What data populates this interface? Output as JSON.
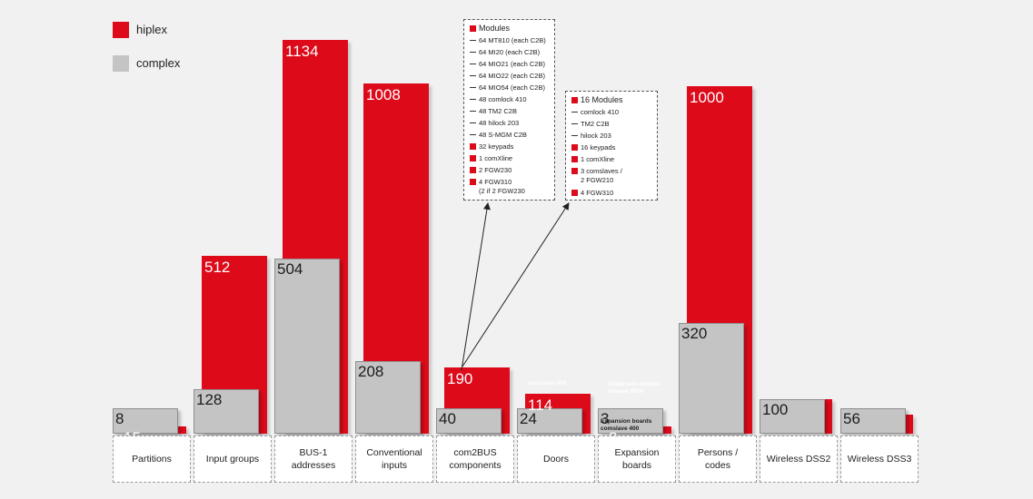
{
  "legend": {
    "hiplex": {
      "label": "hiplex",
      "color": "#dd0a1a"
    },
    "complex": {
      "label": "complex",
      "color": "#c4c4c4"
    }
  },
  "chart_data": {
    "type": "bar",
    "categories": [
      "Partitions",
      "Input groups",
      "BUS-1\naddresses",
      "Conventional\ninputs",
      "com2BUS\ncomponents",
      "Doors",
      "Expansion\nboards",
      "Persons /\ncodes",
      "Wireless DSS2",
      "Wireless DSS3"
    ],
    "series": [
      {
        "name": "hiplex",
        "color": "#dd0a1a",
        "values": [
          15,
          512,
          1134,
          1008,
          190,
          114,
          8,
          1000,
          null,
          null
        ],
        "labels": [
          "15",
          "512",
          "1134",
          "1008",
          "190",
          "114",
          "8",
          "1000",
          "",
          ""
        ]
      },
      {
        "name": "complex",
        "color": "#c4c4c4",
        "values": [
          8,
          128,
          504,
          208,
          40,
          24,
          3,
          320,
          100,
          56
        ],
        "labels": [
          "8",
          "128",
          "504",
          "208",
          "40",
          "24",
          "3",
          "320",
          "100",
          "56"
        ]
      }
    ],
    "notes": {
      "hiplex_doors": "comslave 400",
      "hiplex_expansion": "Expansion boards\nhislave 8000",
      "complex_expansion": "Expansion boards\ncomslave 400"
    },
    "grid": false,
    "legend_position": "top-left"
  },
  "hiplex_box": {
    "items": [
      {
        "kind": "sq",
        "text": "Modules"
      },
      {
        "kind": "dash",
        "text": "64 MT810 (each C2B)"
      },
      {
        "kind": "dash",
        "text": "64 MI20 (each C2B)"
      },
      {
        "kind": "dash",
        "text": "64 MIO21 (each C2B)"
      },
      {
        "kind": "dash",
        "text": "64 MIO22 (each C2B)"
      },
      {
        "kind": "dash",
        "text": "64 MIO54 (each C2B)"
      },
      {
        "kind": "dash",
        "text": "48 comlock 410"
      },
      {
        "kind": "dash",
        "text": "48 TM2 C2B"
      },
      {
        "kind": "dash",
        "text": "48 hilock 203"
      },
      {
        "kind": "dash",
        "text": "48 S-MGM C2B"
      },
      {
        "kind": "sq",
        "text": "32 keypads"
      },
      {
        "kind": "sq",
        "text": "1 comXline"
      },
      {
        "kind": "sq",
        "text": "2 FGW230"
      },
      {
        "kind": "sq",
        "text": "4 FGW310\n(2 if 2 FGW230"
      }
    ]
  },
  "complex_box": {
    "items": [
      {
        "kind": "sq",
        "text": "16 Modules"
      },
      {
        "kind": "dash",
        "text": "comlock 410"
      },
      {
        "kind": "dash",
        "text": "TM2 C2B"
      },
      {
        "kind": "dash",
        "text": "hilock 203"
      },
      {
        "kind": "sq",
        "text": "16 keypads"
      },
      {
        "kind": "sq",
        "text": "1 comXline"
      },
      {
        "kind": "sq",
        "text": "3 comslaves /\n2 FGW210"
      },
      {
        "kind": "sq",
        "text": "4 FGW310"
      }
    ]
  }
}
